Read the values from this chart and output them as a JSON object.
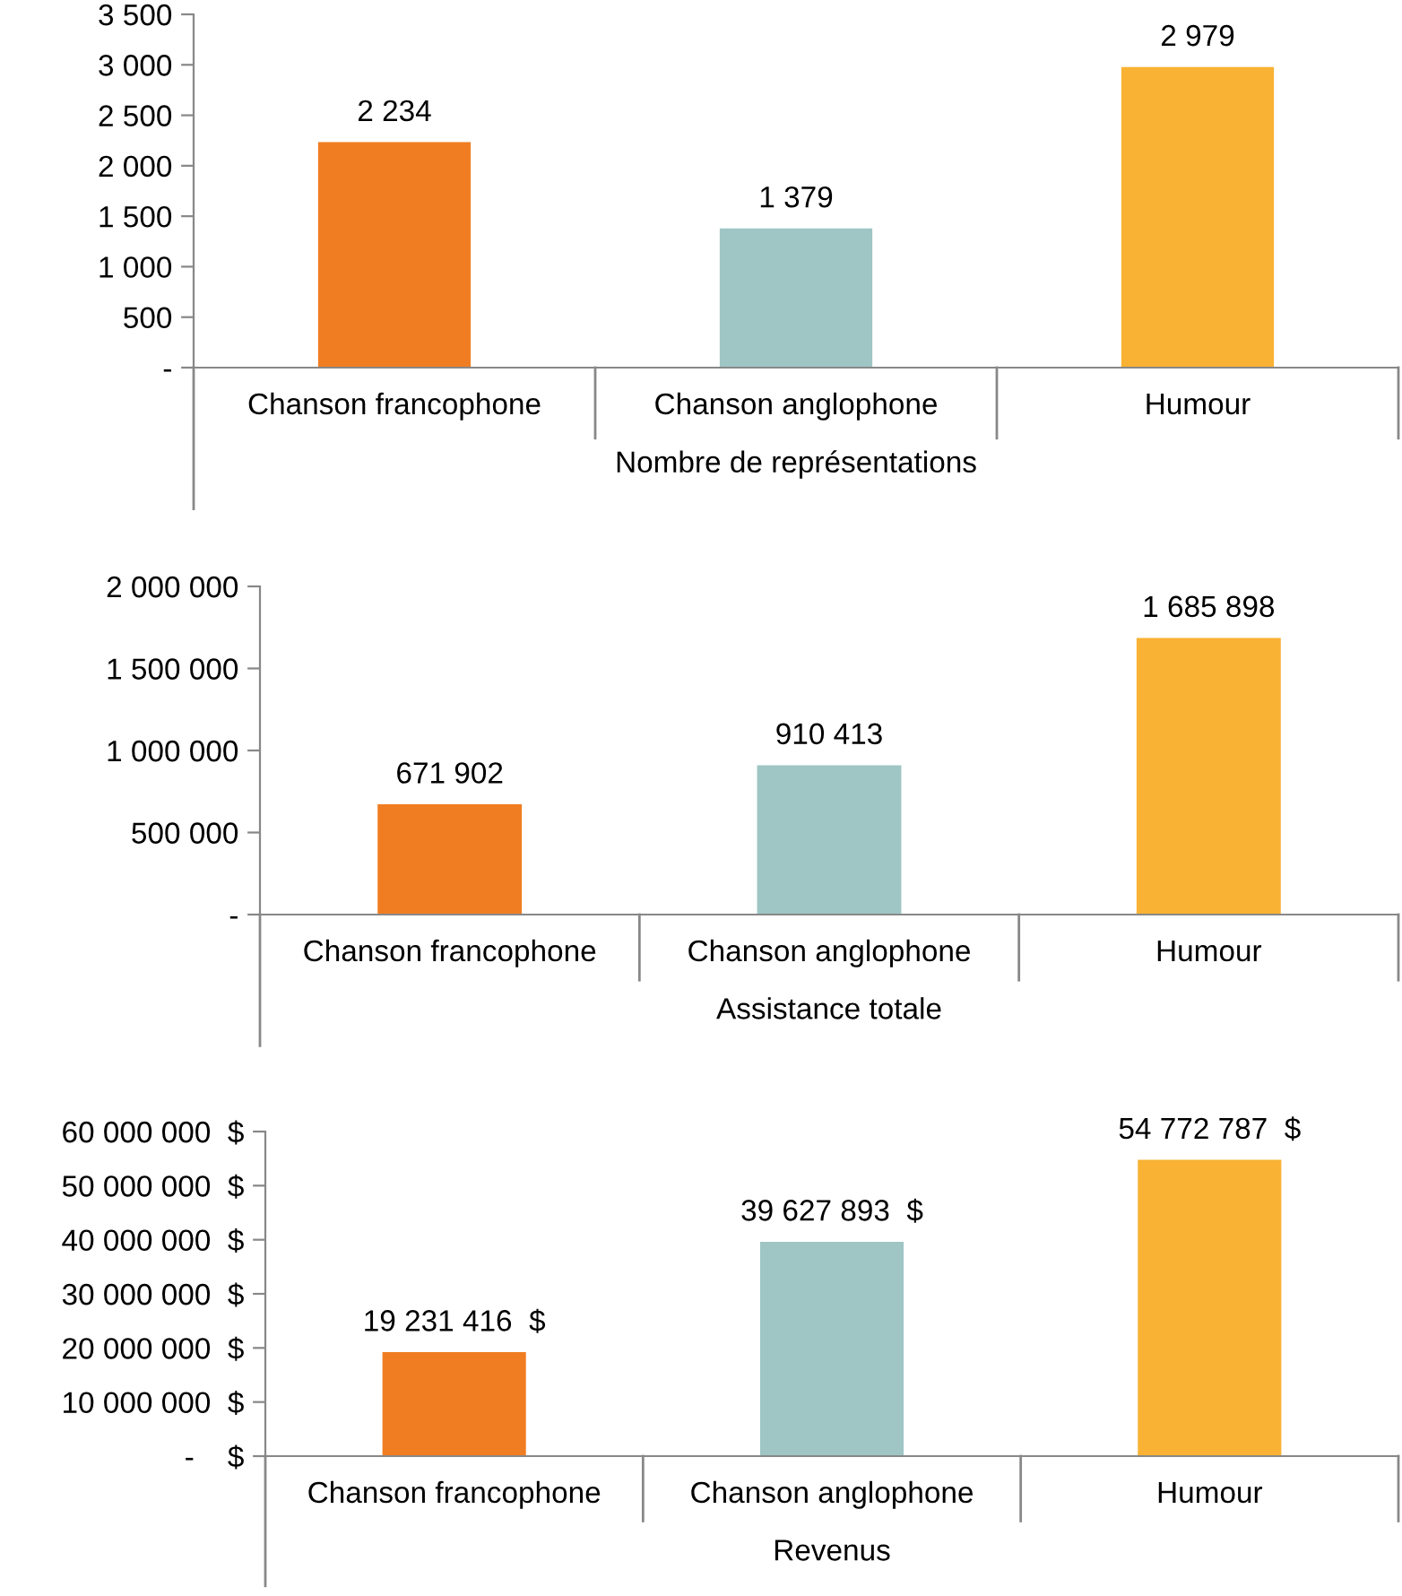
{
  "chart_data": [
    {
      "type": "bar",
      "xlabel": "Nombre de représentations",
      "categories": [
        "Chanson francophone",
        "Chanson anglophone",
        "Humour"
      ],
      "values": [
        2234,
        1379,
        2979
      ],
      "colors": [
        "#f07d22",
        "#9fc5c5",
        "#f9b233"
      ],
      "value_labels": [
        "2 234",
        "1 379",
        "2 979"
      ],
      "ylim": [
        0,
        3500
      ],
      "yticks": [
        {
          "value": 0,
          "label": "-"
        },
        {
          "value": 500,
          "label": "500"
        },
        {
          "value": 1000,
          "label": "1 000"
        },
        {
          "value": 1500,
          "label": "1 500"
        },
        {
          "value": 2000,
          "label": "2 000"
        },
        {
          "value": 2500,
          "label": "2 500"
        },
        {
          "value": 3000,
          "label": "3 000"
        },
        {
          "value": 3500,
          "label": "3 500"
        }
      ],
      "grid": false,
      "legend": false
    },
    {
      "type": "bar",
      "xlabel": "Assistance totale",
      "categories": [
        "Chanson francophone",
        "Chanson anglophone",
        "Humour"
      ],
      "values": [
        671902,
        910413,
        1685898
      ],
      "colors": [
        "#f07d22",
        "#9fc5c5",
        "#f9b233"
      ],
      "value_labels": [
        "671 902",
        "910 413",
        "1 685 898"
      ],
      "ylim": [
        0,
        2000000
      ],
      "yticks": [
        {
          "value": 0,
          "label": "-"
        },
        {
          "value": 500000,
          "label": "500 000"
        },
        {
          "value": 1000000,
          "label": "1 000 000"
        },
        {
          "value": 1500000,
          "label": "1 500 000"
        },
        {
          "value": 2000000,
          "label": "2 000 000"
        }
      ],
      "grid": false,
      "legend": false
    },
    {
      "type": "bar",
      "xlabel": "Revenus",
      "categories": [
        "Chanson francophone",
        "Chanson anglophone",
        "Humour"
      ],
      "values": [
        19231416,
        39627893,
        54772787
      ],
      "colors": [
        "#f07d22",
        "#9fc5c5",
        "#f9b233"
      ],
      "value_labels": [
        "19 231 416  $",
        "39 627 893  $",
        "54 772 787  $"
      ],
      "ylim": [
        0,
        60000000
      ],
      "yticks": [
        {
          "value": 0,
          "label": "-    $"
        },
        {
          "value": 10000000,
          "label": "10 000 000  $"
        },
        {
          "value": 20000000,
          "label": "20 000 000  $"
        },
        {
          "value": 30000000,
          "label": "30 000 000  $"
        },
        {
          "value": 40000000,
          "label": "40 000 000  $"
        },
        {
          "value": 50000000,
          "label": "50 000 000  $"
        },
        {
          "value": 60000000,
          "label": "60 000 000  $"
        }
      ],
      "grid": false,
      "legend": false
    }
  ]
}
